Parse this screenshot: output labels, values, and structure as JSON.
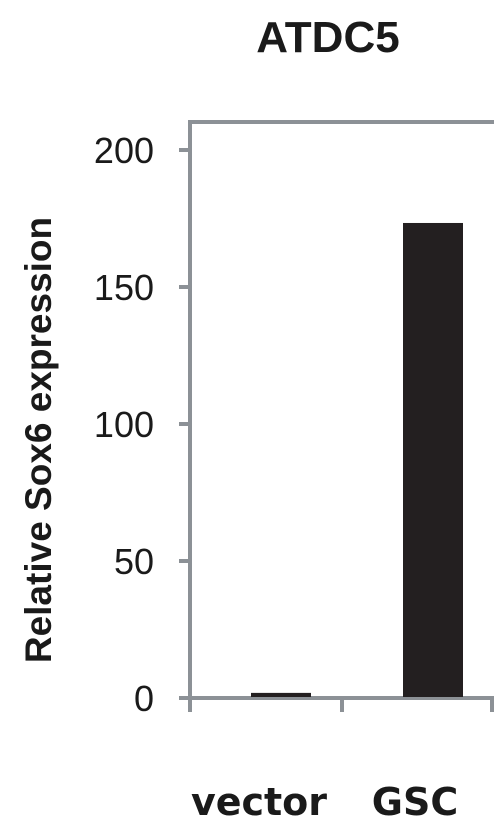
{
  "chart_data": {
    "type": "bar",
    "title": "ATDC5",
    "xlabel": "",
    "ylabel": "Relative Sox6 expression",
    "categories": [
      "vector",
      "GSC"
    ],
    "values": [
      1.5,
      173
    ],
    "ylim": [
      0,
      200
    ],
    "yticks": [
      "0",
      "50",
      "100",
      "150",
      "200"
    ],
    "bar_color": "#231f20",
    "axis_color": "#8c9196",
    "grid": false,
    "legend": "none"
  }
}
